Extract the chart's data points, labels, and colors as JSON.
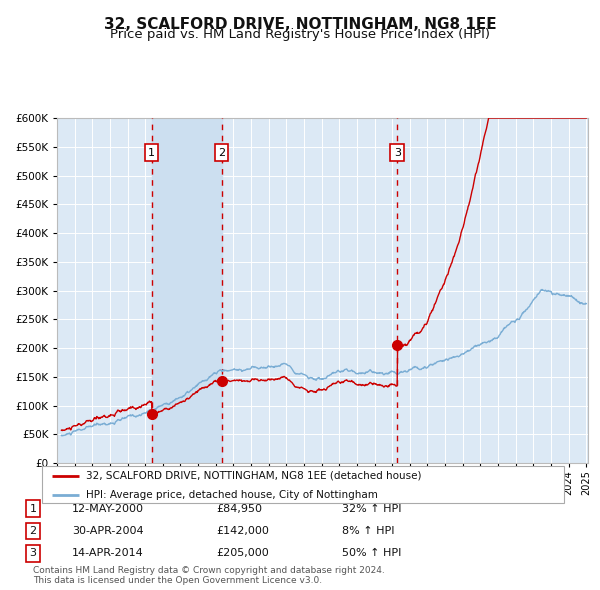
{
  "title": "32, SCALFORD DRIVE, NOTTINGHAM, NG8 1EE",
  "subtitle": "Price paid vs. HM Land Registry's House Price Index (HPI)",
  "ylim": [
    0,
    600000
  ],
  "yticks": [
    0,
    50000,
    100000,
    150000,
    200000,
    250000,
    300000,
    350000,
    400000,
    450000,
    500000,
    550000,
    600000
  ],
  "ytick_labels": [
    "£0",
    "£50K",
    "£100K",
    "£150K",
    "£200K",
    "£250K",
    "£300K",
    "£350K",
    "£400K",
    "£450K",
    "£500K",
    "£550K",
    "£600K"
  ],
  "sale_prices": [
    84950,
    142000,
    205000
  ],
  "sale_labels": [
    "1",
    "2",
    "3"
  ],
  "sale_label_dates_str": [
    "12-MAY-2000",
    "30-APR-2004",
    "14-APR-2014"
  ],
  "sale_prices_str": [
    "£84,950",
    "£142,000",
    "£205,000"
  ],
  "sale_pct_str": [
    "32% ↑ HPI",
    "8% ↑ HPI",
    "50% ↑ HPI"
  ],
  "legend_red_label": "32, SCALFORD DRIVE, NOTTINGHAM, NG8 1EE (detached house)",
  "legend_blue_label": "HPI: Average price, detached house, City of Nottingham",
  "footnote": "Contains HM Land Registry data © Crown copyright and database right 2024.\nThis data is licensed under the Open Government Licence v3.0.",
  "red_color": "#cc0000",
  "blue_color": "#7aadd4",
  "bg_color": "#dce9f5",
  "shade_color": "#ccdff0",
  "grid_color": "#ffffff",
  "vline_color": "#cc0000",
  "title_fontsize": 11,
  "subtitle_fontsize": 9.5
}
